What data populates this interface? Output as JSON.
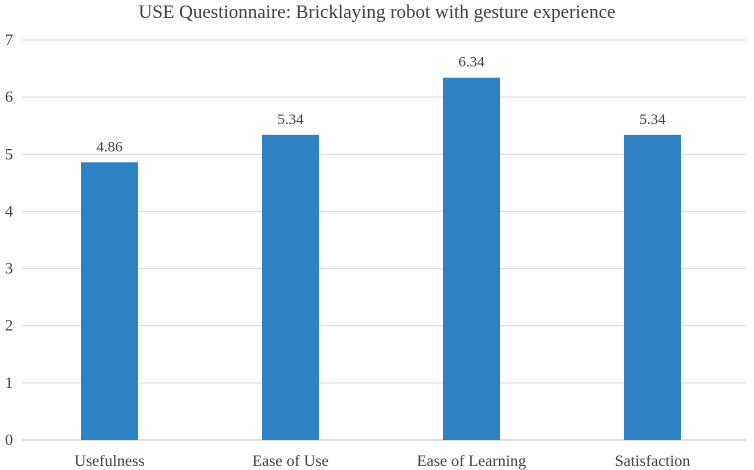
{
  "chart_data": {
    "type": "bar",
    "title": "USE Questionnaire: Bricklaying robot with gesture experience",
    "xlabel": "",
    "ylabel": "",
    "categories": [
      "Usefulness",
      "Ease of Use",
      "Ease of Learning",
      "Satisfaction"
    ],
    "values": [
      4.86,
      5.34,
      6.34,
      5.34
    ],
    "data_labels": [
      "4.86",
      "5.34",
      "6.34",
      "5.34"
    ],
    "ylim": [
      0,
      7
    ],
    "yticks": [
      "0",
      "1",
      "2",
      "3",
      "4",
      "5",
      "6",
      "7"
    ],
    "grid": true,
    "legend": "none",
    "bar_color": "#2e82c4"
  }
}
